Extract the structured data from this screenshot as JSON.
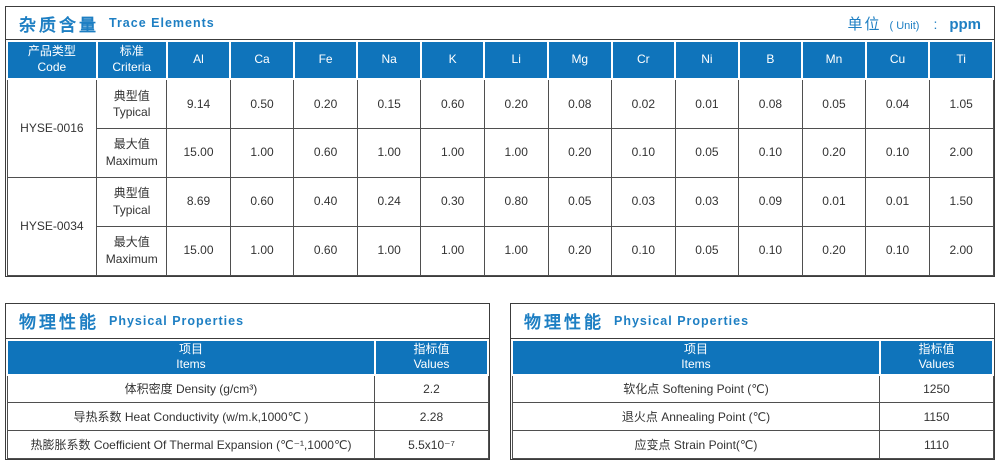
{
  "colors": {
    "header_blue": "#0F74BB",
    "accent_blue": "#1E7FC3",
    "border_dark": "#3C3C3C",
    "cell_border": "#4F4F4F",
    "text": "#333333"
  },
  "trace": {
    "title_zh": "杂质含量",
    "title_en": "Trace Elements",
    "unit_zh": "单位",
    "unit_paren": "( Unit)",
    "unit_colon": ":",
    "unit_value": "ppm",
    "col1_zh": "产品类型",
    "col1_en": "Code",
    "col2_zh": "标准",
    "col2_en": "Criteria",
    "elements": [
      "Al",
      "Ca",
      "Fe",
      "Na",
      "K",
      "Li",
      "Mg",
      "Cr",
      "Ni",
      "B",
      "Mn",
      "Cu",
      "Ti"
    ],
    "products": [
      {
        "code": "HYSE-0016",
        "rows": [
          {
            "label_zh": "典型值",
            "label_en": "Typical",
            "values": [
              "9.14",
              "0.50",
              "0.20",
              "0.15",
              "0.60",
              "0.20",
              "0.08",
              "0.02",
              "0.01",
              "0.08",
              "0.05",
              "0.04",
              "1.05"
            ]
          },
          {
            "label_zh": "最大值",
            "label_en": "Maximum",
            "values": [
              "15.00",
              "1.00",
              "0.60",
              "1.00",
              "1.00",
              "1.00",
              "0.20",
              "0.10",
              "0.05",
              "0.10",
              "0.20",
              "0.10",
              "2.00"
            ]
          }
        ]
      },
      {
        "code": "HYSE-0034",
        "rows": [
          {
            "label_zh": "典型值",
            "label_en": "Typical",
            "values": [
              "8.69",
              "0.60",
              "0.40",
              "0.24",
              "0.30",
              "0.80",
              "0.05",
              "0.03",
              "0.03",
              "0.09",
              "0.01",
              "0.01",
              "1.50"
            ]
          },
          {
            "label_zh": "最大值",
            "label_en": "Maximum",
            "values": [
              "15.00",
              "1.00",
              "0.60",
              "1.00",
              "1.00",
              "1.00",
              "0.20",
              "0.10",
              "0.05",
              "0.10",
              "0.20",
              "0.10",
              "2.00"
            ]
          }
        ]
      }
    ]
  },
  "physical_left": {
    "title_zh": "物理性能",
    "title_en": "Physical Properties",
    "items_zh": "项目",
    "items_en": "Items",
    "values_zh": "指标值",
    "values_en": "Values",
    "rows": [
      {
        "item": "体积密度 Density (g/cm³)",
        "value": "2.2"
      },
      {
        "item": "导热系数 Heat Conductivity (w/m.k,1000℃ )",
        "value": "2.28"
      },
      {
        "item": "热膨胀系数 Coefficient Of Thermal Expansion (℃⁻¹,1000℃)",
        "value": "5.5x10⁻⁷"
      }
    ]
  },
  "physical_right": {
    "title_zh": "物理性能",
    "title_en": "Physical Properties",
    "items_zh": "项目",
    "items_en": "Items",
    "values_zh": "指标值",
    "values_en": "Values",
    "rows": [
      {
        "item": "软化点 Softening Point (℃)",
        "value": "1250"
      },
      {
        "item": "退火点 Annealing Point (℃)",
        "value": "1150"
      },
      {
        "item": "应变点 Strain Point(℃)",
        "value": "1110"
      }
    ]
  }
}
